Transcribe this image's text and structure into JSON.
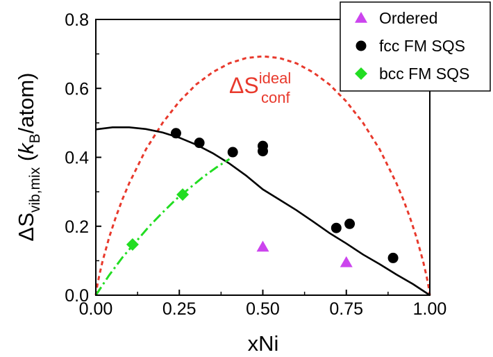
{
  "chart_data": {
    "type": "scatter",
    "xlabel": "xNi",
    "ylabel": {
      "prefix": "ΔS",
      "subscript": "vib,mix",
      "unit_open": " (",
      "unit_symbol": "k",
      "unit_symbol_sub": "B",
      "unit_rest": "/atom)"
    },
    "xlim": [
      0.0,
      1.0
    ],
    "ylim": [
      0.0,
      0.8
    ],
    "x_ticks": [
      "0.00",
      "0.25",
      "0.50",
      "0.75",
      "1.00"
    ],
    "y_ticks": [
      "0.0",
      "0.2",
      "0.4",
      "0.6",
      "0.8"
    ],
    "legend_position": "top-right",
    "series": [
      {
        "name": "Ordered",
        "marker": "triangle",
        "color": "#cc44ee",
        "points": [
          [
            0.5,
            0.14
          ],
          [
            0.75,
            0.095
          ]
        ]
      },
      {
        "name": "fcc FM SQS",
        "marker": "circle",
        "color": "#000000",
        "points": [
          [
            0.24,
            0.47
          ],
          [
            0.31,
            0.442
          ],
          [
            0.41,
            0.415
          ],
          [
            0.5,
            0.433
          ],
          [
            0.5,
            0.418
          ],
          [
            0.72,
            0.195
          ],
          [
            0.76,
            0.207
          ],
          [
            0.89,
            0.108
          ]
        ]
      },
      {
        "name": "bcc FM SQS",
        "marker": "diamond",
        "color": "#22dd22",
        "points": [
          [
            0.11,
            0.147
          ],
          [
            0.26,
            0.292
          ]
        ]
      }
    ],
    "curves": [
      {
        "label_main": "ΔS",
        "label_sup": "ideal",
        "label_sub": "conf",
        "style": "dashed",
        "color": "#e8392c",
        "x": [
          0.0,
          0.001,
          0.003,
          0.005,
          0.01,
          0.02,
          0.04,
          0.06,
          0.08,
          0.1,
          0.15,
          0.2,
          0.25,
          0.3,
          0.35,
          0.4,
          0.45,
          0.5,
          0.55,
          0.6,
          0.65,
          0.7,
          0.75,
          0.8,
          0.85,
          0.9,
          0.92,
          0.94,
          0.96,
          0.98,
          0.99,
          0.995,
          0.997,
          0.999,
          1.0
        ],
        "y": [
          0.0,
          0.0079,
          0.0204,
          0.0315,
          0.056,
          0.098,
          0.168,
          0.227,
          0.279,
          0.325,
          0.423,
          0.5,
          0.562,
          0.611,
          0.647,
          0.673,
          0.688,
          0.693,
          0.688,
          0.673,
          0.647,
          0.611,
          0.562,
          0.5,
          0.423,
          0.325,
          0.279,
          0.227,
          0.168,
          0.098,
          0.056,
          0.0315,
          0.0204,
          0.0079,
          0.0
        ]
      },
      {
        "style": "solid",
        "color": "#000000",
        "x": [
          0.0,
          0.05,
          0.1,
          0.15,
          0.2,
          0.25,
          0.3,
          0.35,
          0.4,
          0.45,
          0.5,
          0.55,
          0.6,
          0.65,
          0.7,
          0.75,
          0.8,
          0.85,
          0.9,
          0.95,
          1.0
        ],
        "y": [
          0.481,
          0.487,
          0.487,
          0.482,
          0.472,
          0.457,
          0.437,
          0.412,
          0.382,
          0.347,
          0.307,
          0.277,
          0.247,
          0.214,
          0.18,
          0.15,
          0.118,
          0.09,
          0.06,
          0.032,
          0.0
        ]
      },
      {
        "style": "dashdot",
        "color": "#22dd22",
        "x": [
          0.0,
          0.04,
          0.08,
          0.12,
          0.16,
          0.2,
          0.24,
          0.28,
          0.32,
          0.36,
          0.4
        ],
        "y": [
          0.0,
          0.058,
          0.11,
          0.155,
          0.2,
          0.24,
          0.278,
          0.31,
          0.342,
          0.37,
          0.395
        ]
      }
    ]
  }
}
